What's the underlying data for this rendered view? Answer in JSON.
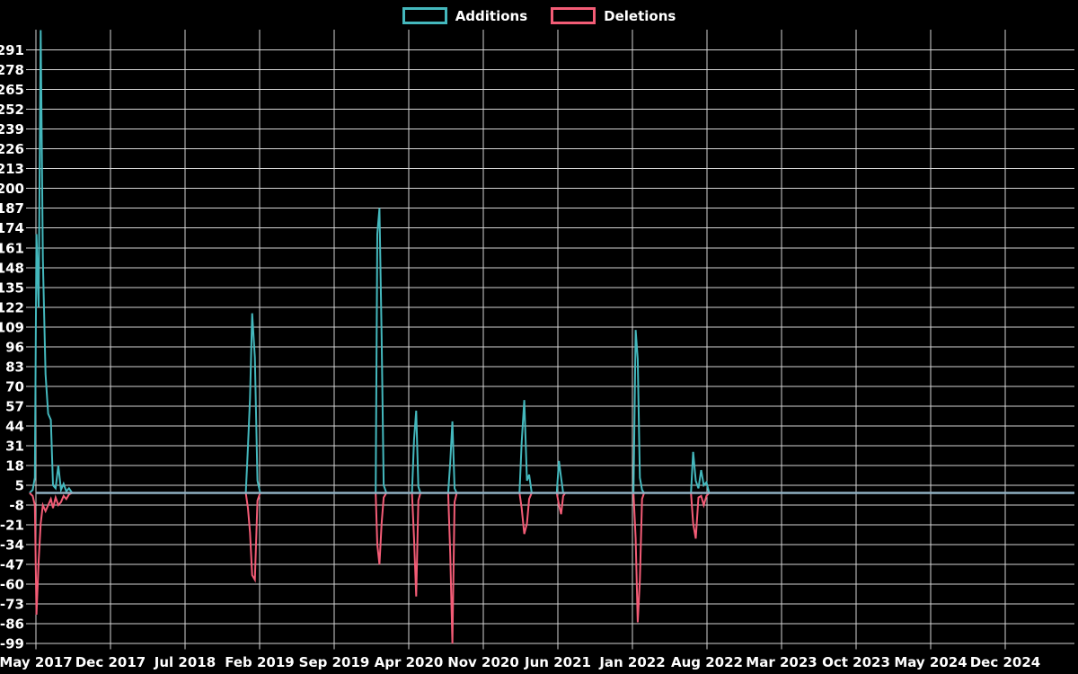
{
  "chart_data": {
    "type": "line",
    "title": "",
    "legend": [
      {
        "label": "Additions",
        "color": "#44b8bd"
      },
      {
        "label": "Deletions",
        "color": "#f35c76"
      }
    ],
    "colors": {
      "additions": "#44b8bd",
      "deletions": "#f35c76",
      "zero_line": "#90b0c2",
      "grid": "#d4d4d4",
      "background": "#000000",
      "text": "#ffffff"
    },
    "grid": true,
    "legend_position": "top-center",
    "ylim": [
      -101,
      304
    ],
    "xlim_months": [
      -0.6,
      97.4
    ],
    "y_ticks": [
      291,
      278,
      265,
      252,
      239,
      226,
      213,
      200,
      187,
      174,
      161,
      148,
      135,
      122,
      109,
      96,
      83,
      70,
      57,
      44,
      31,
      18,
      5,
      -8,
      -21,
      -34,
      -47,
      -60,
      -73,
      -86,
      -99
    ],
    "x_ticks": [
      {
        "t": 0,
        "label": "May 2017"
      },
      {
        "t": 7,
        "label": "Dec 2017"
      },
      {
        "t": 14,
        "label": "Jul 2018"
      },
      {
        "t": 21,
        "label": "Feb 2019"
      },
      {
        "t": 28,
        "label": "Sep 2019"
      },
      {
        "t": 35,
        "label": "Apr 2020"
      },
      {
        "t": 42,
        "label": "Nov 2020"
      },
      {
        "t": 49,
        "label": "Jun 2021"
      },
      {
        "t": 56,
        "label": "Jan 2022"
      },
      {
        "t": 63,
        "label": "Aug 2022"
      },
      {
        "t": 70,
        "label": "Mar 2023"
      },
      {
        "t": 77,
        "label": "Oct 2023"
      },
      {
        "t": 84,
        "label": "May 2024"
      },
      {
        "t": 91,
        "label": "Dec 2024"
      }
    ],
    "series": [
      {
        "name": "Additions",
        "color": "#44b8bd",
        "points": [
          [
            -0.6,
            0
          ],
          [
            -0.3,
            2
          ],
          [
            -0.1,
            10
          ],
          [
            0.05,
            170
          ],
          [
            0.25,
            122
          ],
          [
            0.45,
            304
          ],
          [
            0.65,
            154
          ],
          [
            0.9,
            78
          ],
          [
            1.15,
            52
          ],
          [
            1.4,
            48
          ],
          [
            1.6,
            5
          ],
          [
            1.85,
            3
          ],
          [
            2.1,
            18
          ],
          [
            2.35,
            2
          ],
          [
            2.6,
            6
          ],
          [
            2.85,
            1
          ],
          [
            3.1,
            3
          ],
          [
            3.4,
            0
          ],
          [
            19.7,
            0
          ],
          [
            19.9,
            30
          ],
          [
            20.1,
            62
          ],
          [
            20.3,
            118
          ],
          [
            20.55,
            89
          ],
          [
            20.8,
            8
          ],
          [
            21.05,
            0
          ],
          [
            31.9,
            0
          ],
          [
            32.05,
            170
          ],
          [
            32.25,
            187
          ],
          [
            32.45,
            103
          ],
          [
            32.65,
            5
          ],
          [
            32.9,
            0
          ],
          [
            35.3,
            0
          ],
          [
            35.5,
            35
          ],
          [
            35.7,
            54
          ],
          [
            35.9,
            4
          ],
          [
            36.1,
            0
          ],
          [
            38.7,
            0
          ],
          [
            38.9,
            20
          ],
          [
            39.1,
            47
          ],
          [
            39.3,
            3
          ],
          [
            39.5,
            0
          ],
          [
            45.4,
            0
          ],
          [
            45.6,
            33
          ],
          [
            45.85,
            61
          ],
          [
            46.1,
            8
          ],
          [
            46.3,
            12
          ],
          [
            46.55,
            0
          ],
          [
            48.9,
            0
          ],
          [
            49.1,
            21
          ],
          [
            49.3,
            10
          ],
          [
            49.5,
            0
          ],
          [
            56.1,
            0
          ],
          [
            56.3,
            107
          ],
          [
            56.5,
            88
          ],
          [
            56.7,
            10
          ],
          [
            56.9,
            2
          ],
          [
            57.1,
            0
          ],
          [
            61.5,
            0
          ],
          [
            61.7,
            27
          ],
          [
            61.95,
            8
          ],
          [
            62.2,
            3
          ],
          [
            62.45,
            15
          ],
          [
            62.7,
            5
          ],
          [
            62.95,
            7
          ],
          [
            63.2,
            0
          ],
          [
            97.4,
            0
          ]
        ]
      },
      {
        "name": "Deletions",
        "color": "#f35c76",
        "points": [
          [
            -0.6,
            0
          ],
          [
            -0.3,
            -2
          ],
          [
            -0.1,
            -8
          ],
          [
            0.05,
            -80
          ],
          [
            0.25,
            -45
          ],
          [
            0.45,
            -20
          ],
          [
            0.65,
            -8
          ],
          [
            0.9,
            -12
          ],
          [
            1.15,
            -8
          ],
          [
            1.4,
            -4
          ],
          [
            1.6,
            -10
          ],
          [
            1.85,
            -3
          ],
          [
            2.1,
            -8
          ],
          [
            2.35,
            -6
          ],
          [
            2.6,
            -2
          ],
          [
            2.85,
            -4
          ],
          [
            3.1,
            -1
          ],
          [
            3.4,
            0
          ],
          [
            19.7,
            0
          ],
          [
            19.9,
            -10
          ],
          [
            20.1,
            -26
          ],
          [
            20.3,
            -54
          ],
          [
            20.55,
            -57
          ],
          [
            20.8,
            -5
          ],
          [
            21.05,
            0
          ],
          [
            31.9,
            0
          ],
          [
            32.05,
            -34
          ],
          [
            32.25,
            -47
          ],
          [
            32.45,
            -20
          ],
          [
            32.65,
            -3
          ],
          [
            32.9,
            0
          ],
          [
            35.3,
            0
          ],
          [
            35.5,
            -30
          ],
          [
            35.7,
            -68
          ],
          [
            35.9,
            -5
          ],
          [
            36.1,
            0
          ],
          [
            38.7,
            0
          ],
          [
            38.9,
            -40
          ],
          [
            39.1,
            -99
          ],
          [
            39.3,
            -6
          ],
          [
            39.5,
            0
          ],
          [
            45.4,
            0
          ],
          [
            45.6,
            -10
          ],
          [
            45.85,
            -27
          ],
          [
            46.1,
            -20
          ],
          [
            46.3,
            -4
          ],
          [
            46.55,
            0
          ],
          [
            48.9,
            0
          ],
          [
            49.1,
            -8
          ],
          [
            49.3,
            -14
          ],
          [
            49.5,
            -2
          ],
          [
            49.7,
            0
          ],
          [
            56.1,
            0
          ],
          [
            56.3,
            -30
          ],
          [
            56.5,
            -85
          ],
          [
            56.7,
            -57
          ],
          [
            56.9,
            -4
          ],
          [
            57.1,
            0
          ],
          [
            61.5,
            0
          ],
          [
            61.7,
            -20
          ],
          [
            61.95,
            -30
          ],
          [
            62.2,
            -3
          ],
          [
            62.45,
            -2
          ],
          [
            62.7,
            -8
          ],
          [
            62.95,
            -2
          ],
          [
            63.2,
            0
          ],
          [
            97.4,
            0
          ]
        ]
      }
    ]
  }
}
